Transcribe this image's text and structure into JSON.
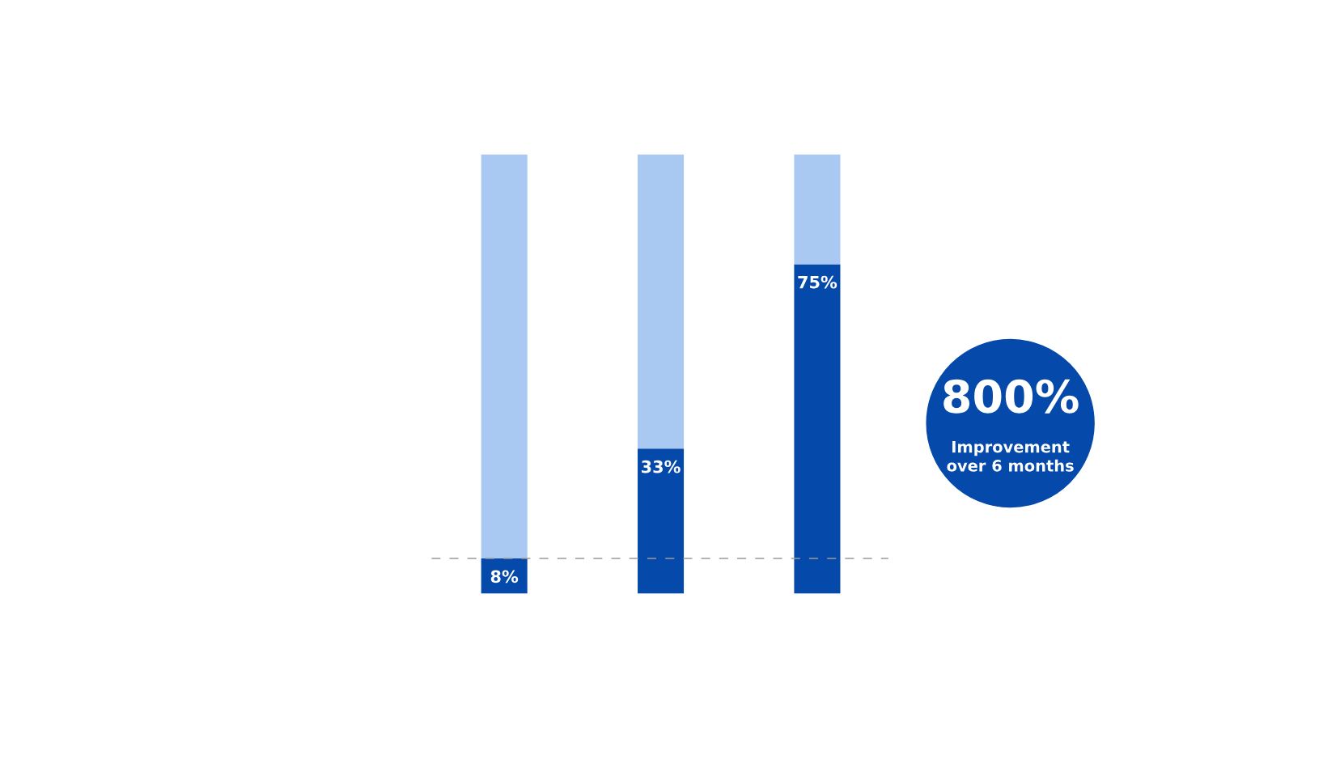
{
  "chart_data": {
    "type": "bar",
    "stacked": true,
    "categories": [
      null,
      null,
      null
    ],
    "series": [
      {
        "color": "#054aab",
        "values": [
          8,
          33,
          75
        ],
        "value_labels": [
          "8%",
          "33%",
          "75%"
        ]
      },
      {
        "color": "#aac9f2",
        "values": [
          92,
          67,
          25
        ]
      }
    ],
    "ref_lines": [
      {
        "axis": "y",
        "value": 8,
        "color": "#9a9a9a",
        "line_style": "dashed"
      }
    ],
    "annotations": [
      "800%",
      "Improvement\nover 6 months"
    ],
    "tick_labels": false,
    "grid": false,
    "legend": false
  }
}
